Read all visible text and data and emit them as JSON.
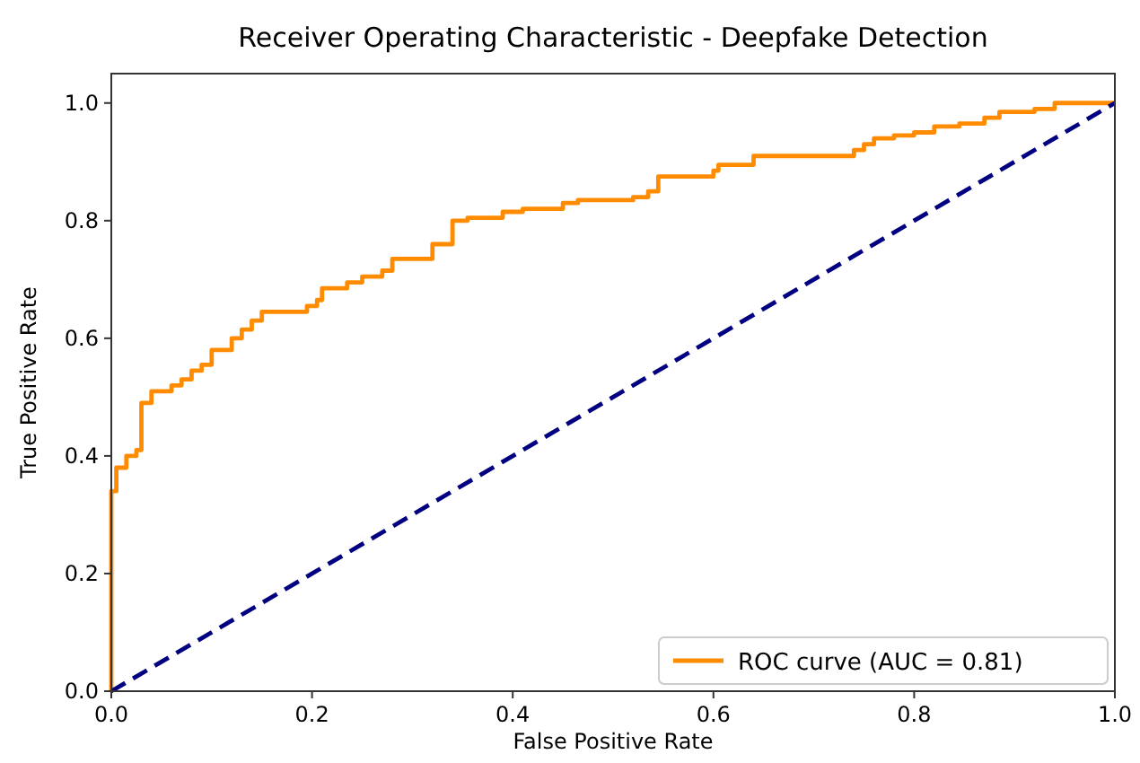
{
  "chart_data": {
    "type": "step",
    "title": "Receiver Operating Characteristic - Deepfake Detection",
    "xlabel": "False Positive Rate",
    "ylabel": "True Positive Rate",
    "xlim": [
      0,
      1
    ],
    "ylim": [
      0,
      1.05
    ],
    "xticks": [
      {
        "value": 0,
        "label": "0.0"
      },
      {
        "value": 0.2,
        "label": "0.2"
      },
      {
        "value": 0.4,
        "label": "0.4"
      },
      {
        "value": 0.6,
        "label": "0.6"
      },
      {
        "value": 0.8,
        "label": "0.8"
      },
      {
        "value": 1,
        "label": "1.0"
      }
    ],
    "yticks": [
      {
        "value": 0,
        "label": "0.0"
      },
      {
        "value": 0.2,
        "label": "0.2"
      },
      {
        "value": 0.4,
        "label": "0.4"
      },
      {
        "value": 0.6,
        "label": "0.6"
      },
      {
        "value": 0.8,
        "label": "0.8"
      },
      {
        "value": 1,
        "label": "1.0"
      }
    ],
    "legend": "bottom right",
    "series": [
      {
        "name": "ROC curve (AUC = 0.81)",
        "color": "#ff8c00",
        "line_style": "solid",
        "x": [
          0,
          0,
          0.005,
          0.015,
          0.025,
          0.03,
          0.04,
          0.06,
          0.07,
          0.08,
          0.09,
          0.1,
          0.12,
          0.13,
          0.14,
          0.15,
          0.195,
          0.205,
          0.21,
          0.235,
          0.25,
          0.27,
          0.28,
          0.32,
          0.34,
          0.355,
          0.39,
          0.41,
          0.45,
          0.465,
          0.52,
          0.535,
          0.545,
          0.6,
          0.605,
          0.64,
          0.74,
          0.75,
          0.76,
          0.78,
          0.8,
          0.82,
          0.845,
          0.87,
          0.885,
          0.92,
          0.94,
          1
        ],
        "values": [
          0,
          0.34,
          0.38,
          0.4,
          0.41,
          0.49,
          0.51,
          0.52,
          0.53,
          0.545,
          0.555,
          0.58,
          0.6,
          0.615,
          0.63,
          0.645,
          0.655,
          0.665,
          0.685,
          0.695,
          0.705,
          0.715,
          0.735,
          0.76,
          0.8,
          0.805,
          0.815,
          0.82,
          0.83,
          0.835,
          0.84,
          0.85,
          0.875,
          0.885,
          0.895,
          0.91,
          0.92,
          0.93,
          0.94,
          0.945,
          0.95,
          0.96,
          0.965,
          0.975,
          0.985,
          0.99,
          1,
          1
        ]
      },
      {
        "type": "line",
        "color": "#000080",
        "line_style": "dashed",
        "x": [
          0,
          1
        ],
        "values": [
          0,
          1
        ]
      }
    ]
  }
}
